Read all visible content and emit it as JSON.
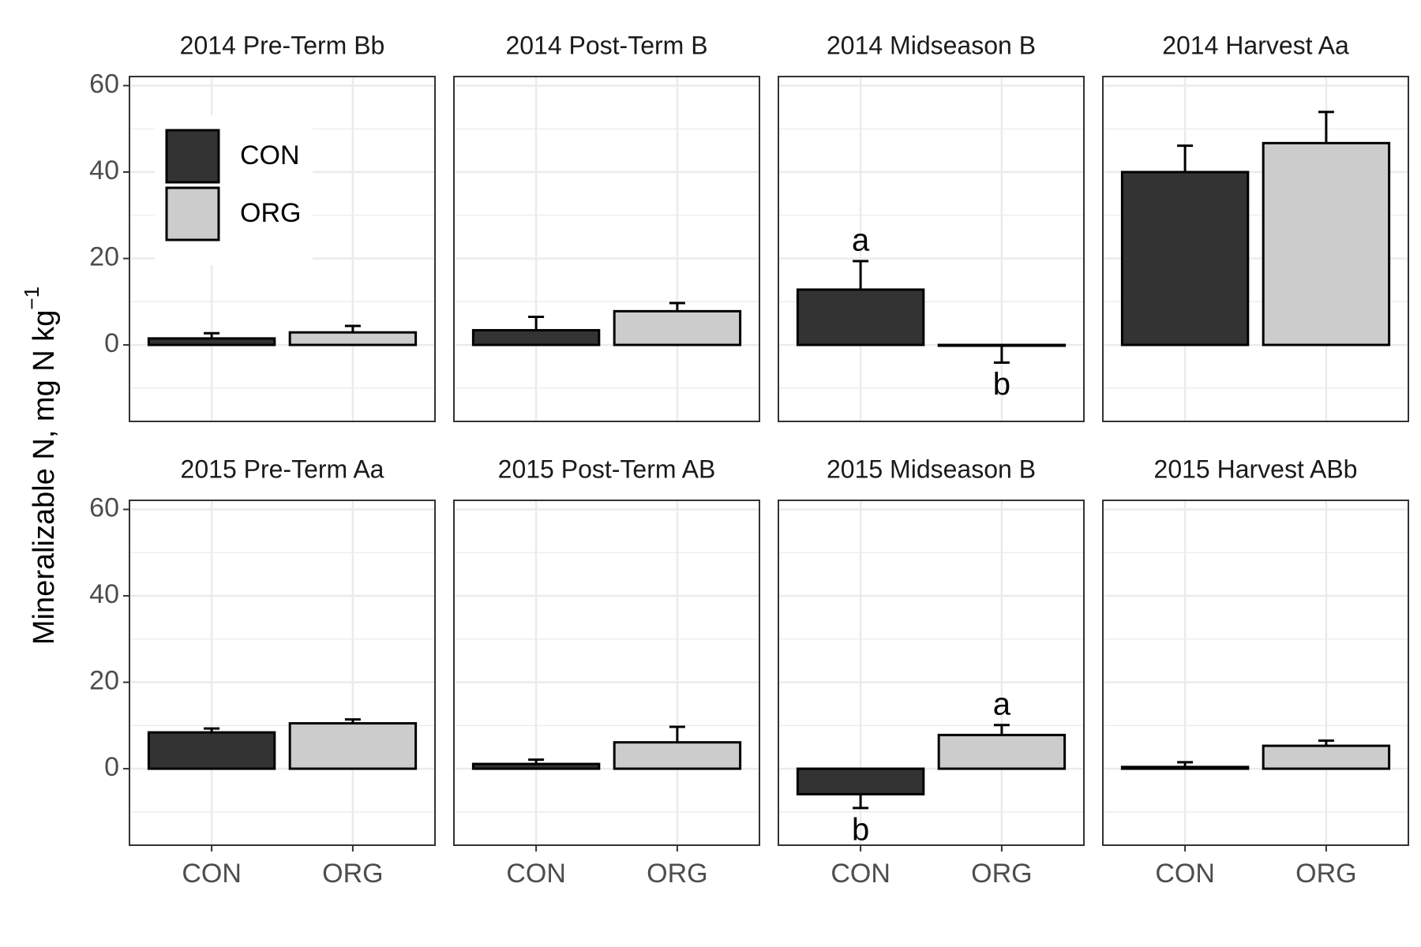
{
  "y_label": "Mineralizable N, mg N kg",
  "y_label_superscript": "−1",
  "legend": [
    {
      "name": "CON",
      "color": "#333333"
    },
    {
      "name": "ORG",
      "color": "#cccccc"
    }
  ],
  "chart_data": [
    {
      "type": "bar",
      "title": "2014 Pre-Term Bb",
      "categories": [
        "CON",
        "ORG"
      ],
      "values": [
        1.5,
        2.9
      ],
      "errors": [
        1.2,
        1.5
      ],
      "ylim": [
        -17.7,
        62.1
      ],
      "yticks": [
        0,
        20,
        40,
        60
      ],
      "minor_yticks": [
        -10,
        10,
        30,
        50
      ],
      "grid": true
    },
    {
      "type": "bar",
      "title": "2014 Post-Term B",
      "categories": [
        "CON",
        "ORG"
      ],
      "values": [
        3.4,
        7.8
      ],
      "errors": [
        3.1,
        1.9
      ],
      "ylim": [
        -17.7,
        62.1
      ],
      "yticks": [
        0,
        20,
        40,
        60
      ],
      "minor_yticks": [
        -10,
        10,
        30,
        50
      ],
      "grid": true
    },
    {
      "type": "bar",
      "title": "2014 Midseason B",
      "categories": [
        "CON",
        "ORG"
      ],
      "values": [
        12.8,
        -0.1
      ],
      "errors": [
        6.6,
        4.0
      ],
      "letters": [
        "a",
        "b"
      ],
      "ylim": [
        -17.7,
        62.1
      ],
      "yticks": [
        0,
        20,
        40,
        60
      ],
      "minor_yticks": [
        -10,
        10,
        30,
        50
      ],
      "grid": true
    },
    {
      "type": "bar",
      "title": "2014 Harvest Aa",
      "categories": [
        "CON",
        "ORG"
      ],
      "values": [
        40.0,
        46.7
      ],
      "errors": [
        6.1,
        7.2
      ],
      "ylim": [
        -17.7,
        62.1
      ],
      "yticks": [
        0,
        20,
        40,
        60
      ],
      "minor_yticks": [
        -10,
        10,
        30,
        50
      ],
      "grid": true
    },
    {
      "type": "bar",
      "title": "2015 Pre-Term Aa",
      "categories": [
        "CON",
        "ORG"
      ],
      "values": [
        8.4,
        10.5
      ],
      "errors": [
        0.9,
        0.9
      ],
      "ylim": [
        -17.7,
        62.1
      ],
      "yticks": [
        0,
        20,
        40,
        60
      ],
      "minor_yticks": [
        -10,
        10,
        30,
        50
      ],
      "grid": true
    },
    {
      "type": "bar",
      "title": "2015 Post-Term AB",
      "categories": [
        "CON",
        "ORG"
      ],
      "values": [
        1.1,
        6.1
      ],
      "errors": [
        1.0,
        3.6
      ],
      "ylim": [
        -17.7,
        62.1
      ],
      "yticks": [
        0,
        20,
        40,
        60
      ],
      "minor_yticks": [
        -10,
        10,
        30,
        50
      ],
      "grid": true
    },
    {
      "type": "bar",
      "title": "2015 Midseason B",
      "categories": [
        "CON",
        "ORG"
      ],
      "values": [
        -5.9,
        7.8
      ],
      "errors": [
        3.2,
        2.3
      ],
      "letters": [
        "b",
        "a"
      ],
      "ylim": [
        -17.7,
        62.1
      ],
      "yticks": [
        0,
        20,
        40,
        60
      ],
      "minor_yticks": [
        -10,
        10,
        30,
        50
      ],
      "grid": true
    },
    {
      "type": "bar",
      "title": "2015 Harvest ABb",
      "categories": [
        "CON",
        "ORG"
      ],
      "values": [
        0.4,
        5.3
      ],
      "errors": [
        1.1,
        1.2
      ],
      "ylim": [
        -17.7,
        62.1
      ],
      "yticks": [
        0,
        20,
        40,
        60
      ],
      "minor_yticks": [
        -10,
        10,
        30,
        50
      ],
      "grid": true
    }
  ]
}
